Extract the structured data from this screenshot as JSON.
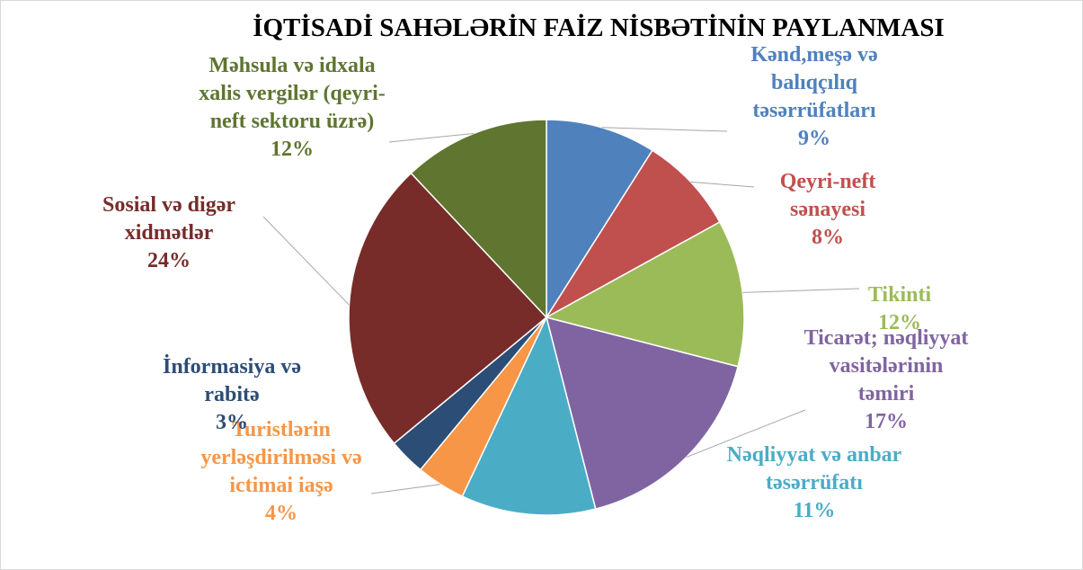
{
  "chart_data": {
    "type": "pie",
    "title": "İQTİSADİ SAHƏLƏRİN FAİZ NİSBƏTİNİN PAYLANMASI",
    "categories": [
      "Kənd,meşə və balıqçılıq təsərrüfatları",
      "Qeyri-neft sənayesi",
      "Tikinti",
      "Ticarət; nəqliyyat vasitələrinin təmiri",
      "Nəqliyyat və anbar təsərrüfatı",
      "Turistlərin yerləşdirilməsi və ictimai iaşə",
      "İnformasiya və rabitə",
      "Sosial və digər xidmətlər",
      "Məhsula və idxala xalis vergilər (qeyri-neft sektoru üzrə)"
    ],
    "values": [
      9,
      8,
      12,
      17,
      11,
      4,
      3,
      24,
      12
    ],
    "value_labels": [
      "9%",
      "8%",
      "12%",
      "17%",
      "11%",
      "4%",
      "3%",
      "24%",
      "12%"
    ],
    "colors": [
      "#4f81bd",
      "#c0504d",
      "#9bbb59",
      "#8064a2",
      "#4bacc6",
      "#f79646",
      "#2c4d75",
      "#772c2a",
      "#5f7530"
    ]
  }
}
